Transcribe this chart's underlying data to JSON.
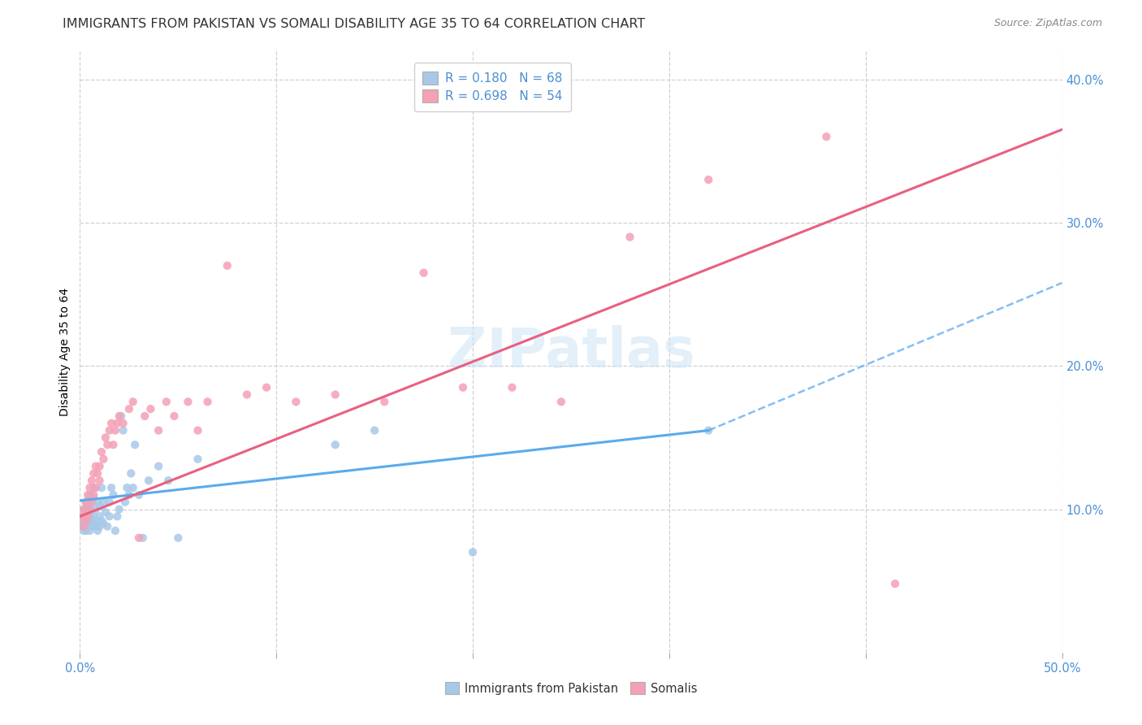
{
  "title": "IMMIGRANTS FROM PAKISTAN VS SOMALI DISABILITY AGE 35 TO 64 CORRELATION CHART",
  "source": "Source: ZipAtlas.com",
  "ylabel": "Disability Age 35 to 64",
  "xlim": [
    0.0,
    0.5
  ],
  "ylim": [
    0.0,
    0.42
  ],
  "xticks": [
    0.0,
    0.1,
    0.2,
    0.3,
    0.4,
    0.5
  ],
  "yticks": [
    0.1,
    0.2,
    0.3,
    0.4
  ],
  "xticklabels": [
    "0.0%",
    "",
    "",
    "",
    "",
    "50.0%"
  ],
  "yticklabels": [
    "10.0%",
    "20.0%",
    "30.0%",
    "40.0%"
  ],
  "legend_labels": [
    "Immigrants from Pakistan",
    "Somalis"
  ],
  "R_pakistan": 0.18,
  "N_pakistan": 68,
  "R_somali": 0.698,
  "N_somali": 54,
  "pakistan_color": "#a8c8e8",
  "somali_color": "#f4a0b5",
  "pakistan_line_color": "#5aaaee",
  "somali_line_color": "#e86080",
  "background_color": "#ffffff",
  "grid_color": "#d0d0d0",
  "title_fontsize": 11.5,
  "axis_label_fontsize": 10,
  "tick_fontsize": 10.5,
  "pakistan_x": [
    0.001,
    0.001,
    0.001,
    0.002,
    0.002,
    0.002,
    0.002,
    0.003,
    0.003,
    0.003,
    0.003,
    0.003,
    0.004,
    0.004,
    0.004,
    0.004,
    0.005,
    0.005,
    0.005,
    0.005,
    0.005,
    0.006,
    0.006,
    0.006,
    0.007,
    0.007,
    0.007,
    0.007,
    0.008,
    0.008,
    0.008,
    0.009,
    0.009,
    0.01,
    0.01,
    0.01,
    0.011,
    0.011,
    0.012,
    0.012,
    0.013,
    0.014,
    0.015,
    0.015,
    0.016,
    0.017,
    0.018,
    0.019,
    0.02,
    0.021,
    0.022,
    0.023,
    0.024,
    0.025,
    0.026,
    0.027,
    0.028,
    0.03,
    0.032,
    0.035,
    0.04,
    0.045,
    0.05,
    0.06,
    0.13,
    0.15,
    0.2,
    0.32
  ],
  "pakistan_y": [
    0.095,
    0.09,
    0.088,
    0.095,
    0.092,
    0.1,
    0.085,
    0.095,
    0.1,
    0.105,
    0.085,
    0.092,
    0.09,
    0.095,
    0.105,
    0.088,
    0.09,
    0.095,
    0.1,
    0.11,
    0.085,
    0.09,
    0.105,
    0.088,
    0.092,
    0.095,
    0.108,
    0.115,
    0.09,
    0.1,
    0.088,
    0.085,
    0.105,
    0.095,
    0.088,
    0.102,
    0.092,
    0.115,
    0.09,
    0.105,
    0.098,
    0.088,
    0.095,
    0.105,
    0.115,
    0.11,
    0.085,
    0.095,
    0.1,
    0.165,
    0.155,
    0.105,
    0.115,
    0.11,
    0.125,
    0.115,
    0.145,
    0.11,
    0.08,
    0.12,
    0.13,
    0.12,
    0.08,
    0.135,
    0.145,
    0.155,
    0.07,
    0.155
  ],
  "somali_x": [
    0.001,
    0.002,
    0.002,
    0.003,
    0.003,
    0.004,
    0.004,
    0.005,
    0.005,
    0.006,
    0.006,
    0.007,
    0.007,
    0.008,
    0.008,
    0.009,
    0.01,
    0.01,
    0.011,
    0.012,
    0.013,
    0.014,
    0.015,
    0.016,
    0.017,
    0.018,
    0.019,
    0.02,
    0.022,
    0.025,
    0.027,
    0.03,
    0.033,
    0.036,
    0.04,
    0.044,
    0.048,
    0.055,
    0.06,
    0.065,
    0.075,
    0.085,
    0.095,
    0.11,
    0.13,
    0.155,
    0.175,
    0.195,
    0.22,
    0.245,
    0.28,
    0.32,
    0.38,
    0.415
  ],
  "somali_y": [
    0.095,
    0.1,
    0.088,
    0.105,
    0.092,
    0.11,
    0.095,
    0.115,
    0.1,
    0.105,
    0.12,
    0.125,
    0.11,
    0.13,
    0.115,
    0.125,
    0.13,
    0.12,
    0.14,
    0.135,
    0.15,
    0.145,
    0.155,
    0.16,
    0.145,
    0.155,
    0.16,
    0.165,
    0.16,
    0.17,
    0.175,
    0.08,
    0.165,
    0.17,
    0.155,
    0.175,
    0.165,
    0.175,
    0.155,
    0.175,
    0.27,
    0.18,
    0.185,
    0.175,
    0.18,
    0.175,
    0.265,
    0.185,
    0.185,
    0.175,
    0.29,
    0.33,
    0.36,
    0.048
  ],
  "pak_line_x0": 0.0,
  "pak_line_x1": 0.32,
  "pak_line_x2": 0.5,
  "pak_line_y0": 0.106,
  "pak_line_y1": 0.155,
  "pak_line_y2": 0.258,
  "som_line_x0": 0.0,
  "som_line_x1": 0.5,
  "som_line_y0": 0.095,
  "som_line_y1": 0.365
}
